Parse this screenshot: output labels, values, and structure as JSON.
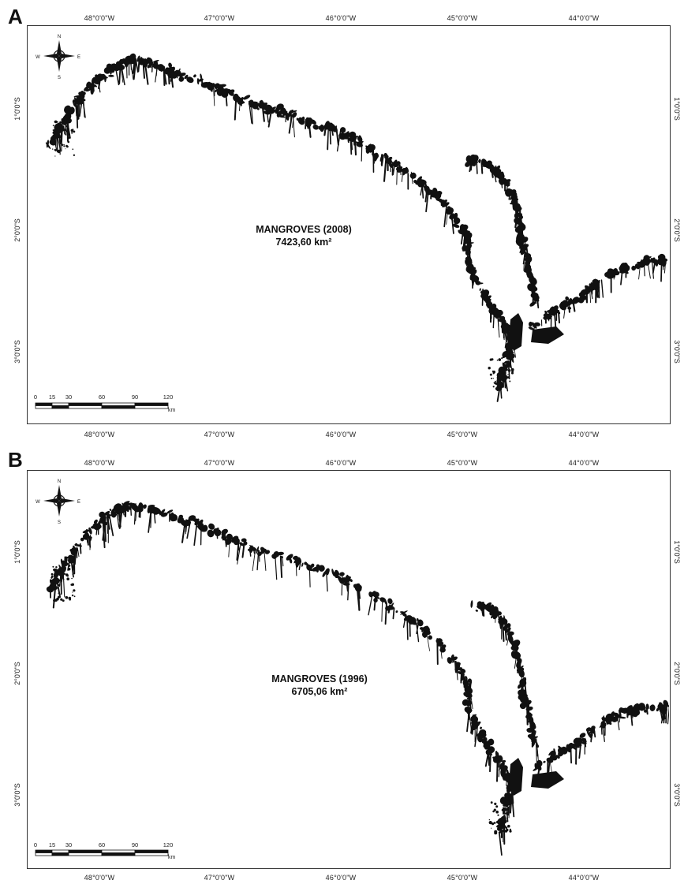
{
  "panels": [
    {
      "letter": "A",
      "title": "MANGROVES (2008)",
      "area": "7423,60 km²",
      "lon_labels": [
        "48°0'0\"W",
        "47°0'0\"W",
        "46°0'0\"W",
        "45°0'0\"W",
        "44°0'0\"W"
      ],
      "lat_labels": [
        "1°0'0\"S",
        "2°0'0\"S",
        "3°0'0\"S"
      ],
      "scale_ticks": [
        "0",
        "15",
        "30",
        "60",
        "90",
        "120"
      ],
      "scale_unit": "km"
    },
    {
      "letter": "B",
      "title": "MANGROVES (1996)",
      "area": "6705,06 km²",
      "lon_labels": [
        "48°0'0\"W",
        "47°0'0\"W",
        "46°0'0\"W",
        "45°0'0\"W",
        "44°0'0\"W"
      ],
      "lat_labels": [
        "1°0'0\"S",
        "2°0'0\"S",
        "3°0'0\"S"
      ],
      "scale_ticks": [
        "0",
        "15",
        "30",
        "60",
        "90",
        "120"
      ],
      "scale_unit": "km"
    }
  ],
  "compass": {
    "icon": "compass-rose-icon",
    "n": "N",
    "s": "S",
    "e": "E",
    "w": "W"
  },
  "colors": {
    "mangrove": "#111111",
    "frame": "#333333",
    "background": "#ffffff"
  }
}
